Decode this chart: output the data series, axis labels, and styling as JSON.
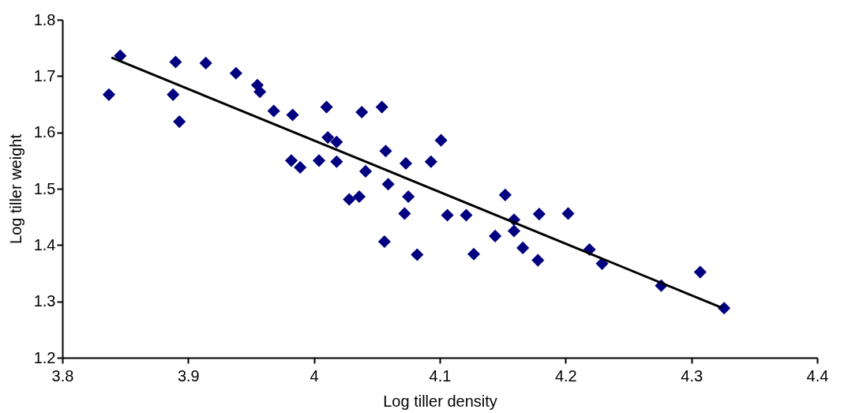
{
  "chart_data": {
    "type": "scatter",
    "xlabel": "Log tiller density",
    "ylabel": "Log tiller weight",
    "xlim": [
      3.8,
      4.4
    ],
    "xticks": [
      3.8,
      3.9,
      4,
      4.1,
      4.2,
      4.3,
      4.4
    ],
    "ylim": [
      1.2,
      1.8
    ],
    "yticks": [
      1.2,
      1.3,
      1.4,
      1.5,
      1.6,
      1.7,
      1.8
    ],
    "grid": false,
    "series": [
      {
        "type": "scatter",
        "marker": "diamond",
        "color": "#000080",
        "x": [
          3.837,
          3.846,
          3.89,
          3.888,
          3.893,
          3.914,
          3.938,
          3.955,
          3.957,
          3.968,
          3.983,
          3.982,
          3.989,
          4.004,
          4.01,
          4.011,
          4.018,
          4.018,
          4.038,
          4.041,
          4.028,
          4.036,
          4.054,
          4.057,
          4.059,
          4.056,
          4.073,
          4.075,
          4.072,
          4.082,
          4.093,
          4.101,
          4.106,
          4.121,
          4.127,
          4.144,
          4.152,
          4.159,
          4.159,
          4.166,
          4.178,
          4.179,
          4.202,
          4.219,
          4.229,
          4.276,
          4.307,
          4.326
        ],
        "values": [
          1.667,
          1.736,
          1.725,
          1.667,
          1.619,
          1.723,
          1.705,
          1.684,
          1.672,
          1.638,
          1.631,
          1.55,
          1.538,
          1.55,
          1.645,
          1.591,
          1.583,
          1.548,
          1.636,
          1.531,
          1.481,
          1.486,
          1.645,
          1.567,
          1.508,
          1.406,
          1.545,
          1.486,
          1.456,
          1.383,
          1.548,
          1.586,
          1.453,
          1.453,
          1.384,
          1.416,
          1.489,
          1.445,
          1.425,
          1.395,
          1.373,
          1.455,
          1.456,
          1.392,
          1.367,
          1.328,
          1.352,
          1.288
        ]
      },
      {
        "type": "line",
        "marker": "none",
        "line_style": "solid",
        "color": "#000000",
        "x": [
          3.839,
          4.324
        ],
        "values": [
          1.733,
          1.289
        ]
      }
    ]
  }
}
